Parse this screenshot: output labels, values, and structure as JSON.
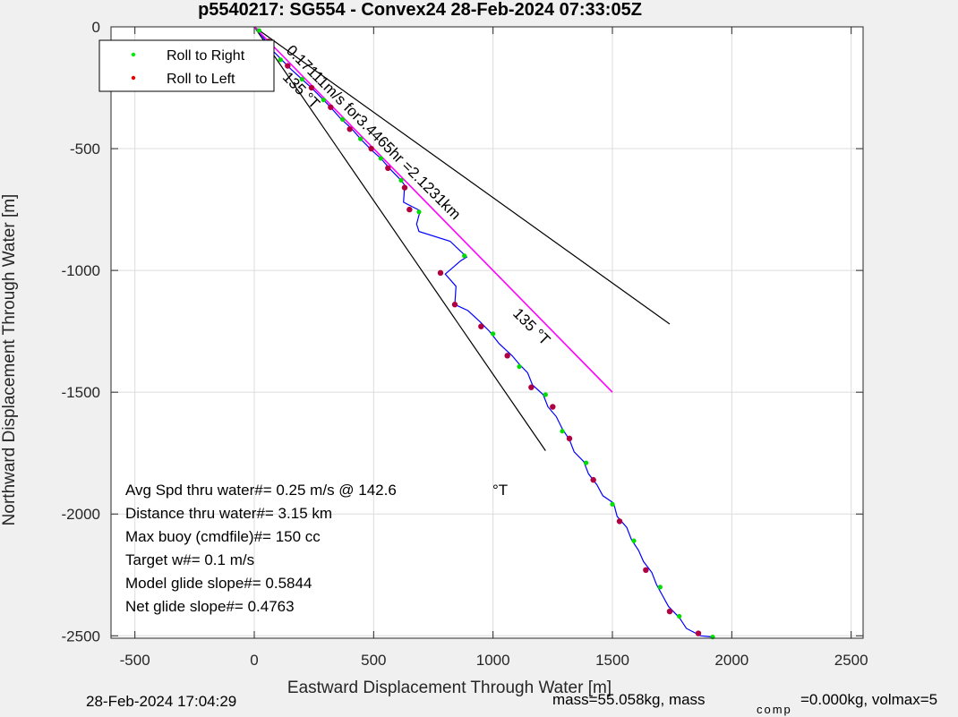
{
  "chart_data": {
    "type": "line",
    "title": "p5540217: SG554 - Convex24 28-Feb-2024 07:33:05Z",
    "xlabel": "Eastward Displacement Through Water [m]",
    "ylabel": "Northward Displacement Through Water [m]",
    "xlim": [
      -600,
      2550
    ],
    "ylim": [
      -2510,
      0
    ],
    "xticks": [
      -500,
      0,
      500,
      1000,
      1500,
      2000,
      2500
    ],
    "xtick_labels": [
      "-500",
      "0",
      "500",
      "1000",
      "1500",
      "2000",
      "2500"
    ],
    "yticks": [
      0,
      -500,
      -1000,
      -1500,
      -2000,
      -2500
    ],
    "ytick_labels": [
      "0",
      "-500",
      "-1000",
      "-1500",
      "-2000",
      "-2500"
    ],
    "grid": true,
    "legend": {
      "position": "top-left",
      "entries": [
        {
          "label": "Roll to Right",
          "color": "#00ee00"
        },
        {
          "label": "Roll to Left",
          "color": "#ee0000"
        }
      ]
    },
    "series": [
      {
        "name": "track",
        "color": "#0000ff",
        "points": [
          [
            0,
            0
          ],
          [
            35,
            -40
          ],
          [
            70,
            -90
          ],
          [
            110,
            -130
          ],
          [
            155,
            -175
          ],
          [
            200,
            -215
          ],
          [
            245,
            -255
          ],
          [
            290,
            -300
          ],
          [
            320,
            -330
          ],
          [
            360,
            -375
          ],
          [
            405,
            -415
          ],
          [
            445,
            -460
          ],
          [
            490,
            -505
          ],
          [
            530,
            -540
          ],
          [
            570,
            -585
          ],
          [
            615,
            -630
          ],
          [
            630,
            -650
          ],
          [
            625,
            -720
          ],
          [
            695,
            -755
          ],
          [
            680,
            -810
          ],
          [
            690,
            -840
          ],
          [
            820,
            -880
          ],
          [
            890,
            -945
          ],
          [
            865,
            -960
          ],
          [
            800,
            -1015
          ],
          [
            845,
            -1065
          ],
          [
            840,
            -1140
          ],
          [
            895,
            -1165
          ],
          [
            945,
            -1210
          ],
          [
            985,
            -1250
          ],
          [
            1025,
            -1300
          ],
          [
            1080,
            -1350
          ],
          [
            1110,
            -1385
          ],
          [
            1145,
            -1420
          ],
          [
            1165,
            -1470
          ],
          [
            1210,
            -1510
          ],
          [
            1230,
            -1560
          ],
          [
            1265,
            -1600
          ],
          [
            1290,
            -1650
          ],
          [
            1320,
            -1695
          ],
          [
            1340,
            -1745
          ],
          [
            1380,
            -1785
          ],
          [
            1400,
            -1835
          ],
          [
            1435,
            -1880
          ],
          [
            1460,
            -1925
          ],
          [
            1505,
            -1955
          ],
          [
            1520,
            -2010
          ],
          [
            1560,
            -2055
          ],
          [
            1580,
            -2105
          ],
          [
            1610,
            -2150
          ],
          [
            1630,
            -2195
          ],
          [
            1665,
            -2240
          ],
          [
            1685,
            -2290
          ],
          [
            1710,
            -2335
          ],
          [
            1735,
            -2380
          ],
          [
            1780,
            -2425
          ],
          [
            1810,
            -2470
          ],
          [
            1870,
            -2500
          ],
          [
            1920,
            -2505
          ]
        ]
      },
      {
        "name": "heading-line",
        "color": "#ff00ff",
        "points": [
          [
            0,
            0
          ],
          [
            1500,
            -1500
          ]
        ]
      }
    ],
    "envelope_lines": [
      {
        "points": [
          [
            0,
            0
          ],
          [
            1740,
            -1220
          ]
        ]
      },
      {
        "points": [
          [
            0,
            0
          ],
          [
            1220,
            -1740
          ]
        ]
      }
    ],
    "roll_right_points": [
      [
        20,
        -15
      ],
      [
        110,
        -135
      ],
      [
        200,
        -215
      ],
      [
        290,
        -300
      ],
      [
        370,
        -380
      ],
      [
        445,
        -460
      ],
      [
        530,
        -540
      ],
      [
        615,
        -630
      ],
      [
        690,
        -760
      ],
      [
        880,
        -940
      ],
      [
        1000,
        -1260
      ],
      [
        1110,
        -1395
      ],
      [
        1220,
        -1510
      ],
      [
        1290,
        -1660
      ],
      [
        1390,
        -1790
      ],
      [
        1500,
        -1960
      ],
      [
        1590,
        -2110
      ],
      [
        1700,
        -2300
      ],
      [
        1780,
        -2420
      ],
      [
        1920,
        -2505
      ]
    ],
    "roll_left_points": [
      [
        60,
        -60
      ],
      [
        140,
        -160
      ],
      [
        240,
        -250
      ],
      [
        320,
        -330
      ],
      [
        400,
        -420
      ],
      [
        490,
        -500
      ],
      [
        560,
        -580
      ],
      [
        630,
        -660
      ],
      [
        650,
        -750
      ],
      [
        780,
        -1010
      ],
      [
        840,
        -1140
      ],
      [
        950,
        -1230
      ],
      [
        1060,
        -1350
      ],
      [
        1160,
        -1480
      ],
      [
        1250,
        -1560
      ],
      [
        1320,
        -1690
      ],
      [
        1420,
        -1860
      ],
      [
        1530,
        -2030
      ],
      [
        1640,
        -2230
      ],
      [
        1740,
        -2400
      ],
      [
        1860,
        -2490
      ]
    ],
    "annotations": [
      {
        "text": "0.17111m/s for3.4465hr =2.1231km",
        "x": 130,
        "y": -100,
        "angle": 45
      },
      {
        "text": "135 °T",
        "x": 115,
        "y": -210,
        "angle": 45
      },
      {
        "text": "135 °T",
        "x": 1080,
        "y": -1180,
        "angle": 45
      }
    ]
  },
  "stats": {
    "avg_spd": "Avg Spd thru water#=  0.25 m/s @ 142.6",
    "avg_spd_unit": "°T",
    "distance": "Distance thru water#=  3.15 km",
    "max_buoy": "Max buoy (cmdfile)#= 150 cc",
    "target_w": "Target w#= 0.1 m/s",
    "model_glide": "Model glide slope#= 0.5844",
    "net_glide": "Net glide slope#= 0.4763"
  },
  "footer": {
    "timestamp": "28-Feb-2024 17:04:29",
    "mass_text": "mass=55.058kg, mass",
    "comp_sub": "comp",
    "volmax_text": "=0.000kg, volmax=5"
  }
}
